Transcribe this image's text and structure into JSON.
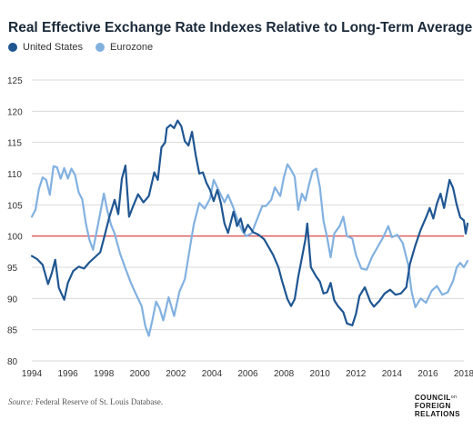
{
  "header": {
    "title": "Real Effective Exchange Rate Indexes Relative to Long-Term Average"
  },
  "legend": [
    {
      "label": "United States",
      "color": "#1f5692"
    },
    {
      "label": "Eurozone",
      "color": "#82b1e0"
    }
  ],
  "footer": {
    "source_label": "Source:",
    "source_text": "Federal Reserve of St. Louis Database.",
    "logo_lines": [
      "COUNCIL",
      "FOREIGN",
      "RELATIONS"
    ],
    "logo_small": "on"
  },
  "chart_data": {
    "type": "line",
    "title": "Real Effective Exchange Rate Indexes Relative to Long-Term Average",
    "xlabel": "",
    "ylabel": "",
    "xlim": [
      1994,
      2018
    ],
    "ylim": [
      80,
      125
    ],
    "x_ticks": [
      "1994",
      "1996",
      "1998",
      "2000",
      "2002",
      "2004",
      "2006",
      "2008",
      "2010",
      "2012",
      "2014",
      "2016",
      "2018"
    ],
    "y_ticks": [
      "80",
      "85",
      "90",
      "95",
      "100",
      "105",
      "110",
      "115",
      "120",
      "125"
    ],
    "grid": "horizontal",
    "legend_position": "top-left",
    "reference_line": {
      "value": 100,
      "color": "#d9383a"
    },
    "series": [
      {
        "name": "United States",
        "color": "#1f5692",
        "points": [
          [
            1994.0,
            96.8
          ],
          [
            1994.3,
            96.3
          ],
          [
            1994.6,
            95.4
          ],
          [
            1994.9,
            92.3
          ],
          [
            1995.1,
            94.0
          ],
          [
            1995.3,
            96.2
          ],
          [
            1995.5,
            91.7
          ],
          [
            1995.8,
            89.8
          ],
          [
            1996.0,
            92.5
          ],
          [
            1996.3,
            94.4
          ],
          [
            1996.6,
            95.1
          ],
          [
            1996.9,
            94.8
          ],
          [
            1997.2,
            95.8
          ],
          [
            1997.5,
            96.6
          ],
          [
            1997.8,
            97.4
          ],
          [
            1998.0,
            99.6
          ],
          [
            1998.3,
            103.0
          ],
          [
            1998.6,
            105.8
          ],
          [
            1998.8,
            103.5
          ],
          [
            1999.0,
            109.2
          ],
          [
            1999.2,
            111.3
          ],
          [
            1999.4,
            103.1
          ],
          [
            1999.6,
            104.6
          ],
          [
            1999.9,
            106.7
          ],
          [
            2000.2,
            105.4
          ],
          [
            2000.5,
            106.4
          ],
          [
            2000.8,
            110.2
          ],
          [
            2001.0,
            109.0
          ],
          [
            2001.2,
            114.2
          ],
          [
            2001.4,
            115.0
          ],
          [
            2001.5,
            117.3
          ],
          [
            2001.7,
            117.8
          ],
          [
            2001.9,
            117.3
          ],
          [
            2002.1,
            118.5
          ],
          [
            2002.3,
            117.6
          ],
          [
            2002.5,
            115.2
          ],
          [
            2002.7,
            114.5
          ],
          [
            2002.9,
            116.7
          ],
          [
            2003.1,
            113.0
          ],
          [
            2003.3,
            110.0
          ],
          [
            2003.5,
            110.2
          ],
          [
            2003.7,
            108.5
          ],
          [
            2003.9,
            107.4
          ],
          [
            2004.1,
            105.6
          ],
          [
            2004.3,
            107.4
          ],
          [
            2004.5,
            105.3
          ],
          [
            2004.7,
            102.0
          ],
          [
            2004.9,
            100.5
          ],
          [
            2005.2,
            103.9
          ],
          [
            2005.4,
            101.6
          ],
          [
            2005.6,
            102.8
          ],
          [
            2005.8,
            100.6
          ],
          [
            2006.0,
            101.8
          ],
          [
            2006.3,
            100.6
          ],
          [
            2006.6,
            100.2
          ],
          [
            2006.9,
            99.5
          ],
          [
            2007.2,
            98.0
          ],
          [
            2007.4,
            97.0
          ],
          [
            2007.7,
            95.0
          ],
          [
            2007.9,
            92.8
          ],
          [
            2008.2,
            89.9
          ],
          [
            2008.4,
            88.8
          ],
          [
            2008.6,
            89.9
          ],
          [
            2008.8,
            93.5
          ],
          [
            2009.0,
            96.5
          ],
          [
            2009.2,
            99.5
          ],
          [
            2009.3,
            102.0
          ],
          [
            2009.5,
            95.0
          ],
          [
            2009.8,
            93.5
          ],
          [
            2010.0,
            92.7
          ],
          [
            2010.2,
            90.8
          ],
          [
            2010.4,
            91.0
          ],
          [
            2010.6,
            92.5
          ],
          [
            2010.8,
            89.7
          ],
          [
            2011.0,
            88.8
          ],
          [
            2011.3,
            87.8
          ],
          [
            2011.5,
            86.0
          ],
          [
            2011.8,
            85.7
          ],
          [
            2012.0,
            87.5
          ],
          [
            2012.2,
            90.4
          ],
          [
            2012.5,
            91.8
          ],
          [
            2012.8,
            89.5
          ],
          [
            2013.0,
            88.7
          ],
          [
            2013.3,
            89.6
          ],
          [
            2013.6,
            90.8
          ],
          [
            2013.9,
            91.4
          ],
          [
            2014.2,
            90.6
          ],
          [
            2014.5,
            90.8
          ],
          [
            2014.8,
            91.8
          ],
          [
            2015.0,
            95.5
          ],
          [
            2015.3,
            98.5
          ],
          [
            2015.6,
            101.0
          ],
          [
            2015.9,
            103.0
          ],
          [
            2016.1,
            104.5
          ],
          [
            2016.3,
            102.8
          ],
          [
            2016.5,
            105.2
          ],
          [
            2016.7,
            106.8
          ],
          [
            2016.9,
            104.5
          ],
          [
            2017.2,
            109.0
          ],
          [
            2017.4,
            107.7
          ],
          [
            2017.6,
            105.0
          ],
          [
            2017.8,
            103.0
          ],
          [
            2018.0,
            102.5
          ],
          [
            2018.1,
            100.4
          ],
          [
            2018.2,
            102.0
          ]
        ]
      },
      {
        "name": "Eurozone",
        "color": "#82b1e0",
        "points": [
          [
            1994.0,
            103.1
          ],
          [
            1994.2,
            104.2
          ],
          [
            1994.4,
            107.6
          ],
          [
            1994.6,
            109.4
          ],
          [
            1994.8,
            109.0
          ],
          [
            1995.0,
            106.6
          ],
          [
            1995.2,
            111.2
          ],
          [
            1995.4,
            111.0
          ],
          [
            1995.6,
            109.2
          ],
          [
            1995.8,
            110.9
          ],
          [
            1996.0,
            109.2
          ],
          [
            1996.2,
            110.8
          ],
          [
            1996.4,
            109.8
          ],
          [
            1996.6,
            107.0
          ],
          [
            1996.8,
            105.9
          ],
          [
            1997.0,
            102.0
          ],
          [
            1997.2,
            99.4
          ],
          [
            1997.4,
            97.8
          ],
          [
            1997.6,
            100.7
          ],
          [
            1997.8,
            103.7
          ],
          [
            1998.0,
            106.8
          ],
          [
            1998.2,
            104.0
          ],
          [
            1998.4,
            101.8
          ],
          [
            1998.6,
            100.4
          ],
          [
            1998.9,
            97.2
          ],
          [
            1999.2,
            94.8
          ],
          [
            1999.5,
            92.5
          ],
          [
            1999.8,
            90.6
          ],
          [
            2000.1,
            88.8
          ],
          [
            2000.3,
            85.6
          ],
          [
            2000.5,
            84.0
          ],
          [
            2000.7,
            86.6
          ],
          [
            2000.9,
            89.5
          ],
          [
            2001.1,
            88.4
          ],
          [
            2001.3,
            86.5
          ],
          [
            2001.6,
            90.2
          ],
          [
            2001.9,
            87.2
          ],
          [
            2002.2,
            91.1
          ],
          [
            2002.5,
            93.1
          ],
          [
            2002.8,
            98.5
          ],
          [
            2003.0,
            101.9
          ],
          [
            2003.3,
            105.3
          ],
          [
            2003.6,
            104.4
          ],
          [
            2003.9,
            106.0
          ],
          [
            2004.1,
            109.0
          ],
          [
            2004.4,
            107.2
          ],
          [
            2004.7,
            105.4
          ],
          [
            2004.9,
            106.6
          ],
          [
            2005.2,
            104.5
          ],
          [
            2005.5,
            102.0
          ],
          [
            2005.7,
            100.8
          ],
          [
            2005.9,
            100.0
          ],
          [
            2006.2,
            100.4
          ],
          [
            2006.5,
            102.6
          ],
          [
            2006.8,
            104.8
          ],
          [
            2007.0,
            104.8
          ],
          [
            2007.3,
            105.8
          ],
          [
            2007.5,
            107.8
          ],
          [
            2007.8,
            106.4
          ],
          [
            2008.0,
            109.4
          ],
          [
            2008.2,
            111.5
          ],
          [
            2008.4,
            110.6
          ],
          [
            2008.6,
            109.5
          ],
          [
            2008.8,
            104.2
          ],
          [
            2009.0,
            106.8
          ],
          [
            2009.2,
            105.7
          ],
          [
            2009.4,
            108.3
          ],
          [
            2009.6,
            110.4
          ],
          [
            2009.8,
            110.8
          ],
          [
            2010.0,
            107.8
          ],
          [
            2010.2,
            102.5
          ],
          [
            2010.4,
            99.8
          ],
          [
            2010.6,
            96.6
          ],
          [
            2010.8,
            100.4
          ],
          [
            2011.1,
            101.6
          ],
          [
            2011.3,
            103.1
          ],
          [
            2011.5,
            100.0
          ],
          [
            2011.8,
            99.6
          ],
          [
            2012.0,
            97.0
          ],
          [
            2012.3,
            94.8
          ],
          [
            2012.6,
            94.6
          ],
          [
            2012.9,
            96.7
          ],
          [
            2013.2,
            98.2
          ],
          [
            2013.5,
            99.7
          ],
          [
            2013.8,
            101.6
          ],
          [
            2014.0,
            99.8
          ],
          [
            2014.3,
            100.2
          ],
          [
            2014.6,
            98.9
          ],
          [
            2014.9,
            95.5
          ],
          [
            2015.1,
            91.0
          ],
          [
            2015.3,
            88.6
          ],
          [
            2015.6,
            90.0
          ],
          [
            2015.9,
            89.3
          ],
          [
            2016.2,
            91.2
          ],
          [
            2016.5,
            92.0
          ],
          [
            2016.8,
            90.6
          ],
          [
            2017.1,
            91.0
          ],
          [
            2017.4,
            92.8
          ],
          [
            2017.6,
            95.0
          ],
          [
            2017.8,
            95.7
          ],
          [
            2018.0,
            95.0
          ],
          [
            2018.2,
            96.0
          ]
        ]
      }
    ]
  }
}
